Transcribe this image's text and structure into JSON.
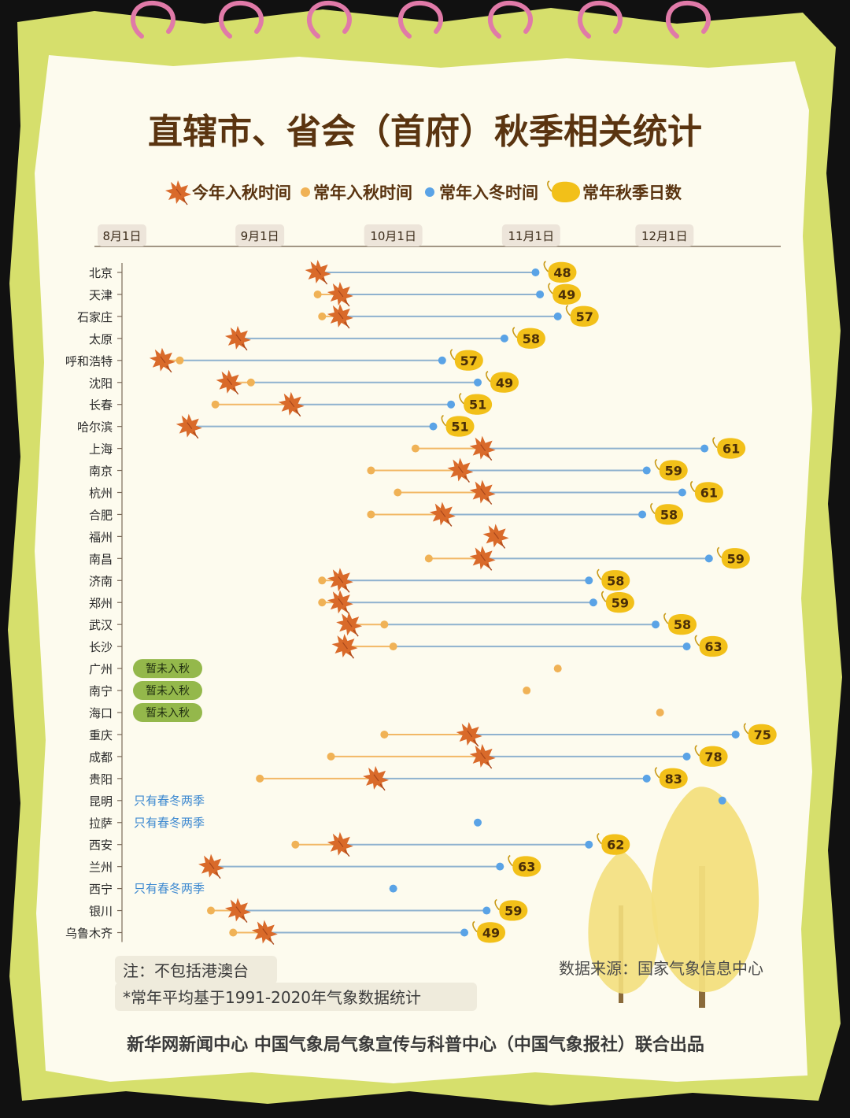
{
  "title": "直辖市、省会（首府）秋季相关统计",
  "legend": {
    "this_year": "今年入秋时间",
    "normal_autumn": "常年入秋时间",
    "normal_winter": "常年入冬时间",
    "autumn_days": "常年秋季日数"
  },
  "badges": {
    "not_yet": "暂未入秋",
    "spring_winter_only": "只有春冬两季"
  },
  "notes": {
    "note1": "注：不包括港澳台",
    "note2": "*常年平均基于1991-2020年气象数据统计",
    "source": "数据来源：国家气象信息中心",
    "credit": "新华网新闻中心 中国气象局气象宣传与科普中心（中国气象报社）联合出品"
  },
  "colors": {
    "accent_brown": "#5a3410",
    "autumn_dot": "#f0b256",
    "winter_dot": "#5aa3e6",
    "badge_fill": "#f2c019",
    "leaf": "#d96a2a",
    "green_badge": "#94b84b",
    "frame": "#d6df6c",
    "paper": "#fdfbee"
  },
  "chart_data": {
    "type": "range-dot",
    "x_axis": {
      "ticks": [
        {
          "label": "8月1日",
          "day": 0
        },
        {
          "label": "9月1日",
          "day": 31
        },
        {
          "label": "10月1日",
          "day": 61
        },
        {
          "label": "11月1日",
          "day": 92
        },
        {
          "label": "12月1日",
          "day": 122
        }
      ]
    },
    "cities": [
      {
        "name": "北京",
        "this_year": 44,
        "normal_autumn": null,
        "normal_winter": 93,
        "days": 48,
        "status": null
      },
      {
        "name": "天津",
        "this_year": 49,
        "normal_autumn": 44,
        "normal_winter": 94,
        "days": 49,
        "status": null
      },
      {
        "name": "石家庄",
        "this_year": 49,
        "normal_autumn": 45,
        "normal_winter": 98,
        "days": 57,
        "status": null
      },
      {
        "name": "太原",
        "this_year": 26,
        "normal_autumn": null,
        "normal_winter": 86,
        "days": 58,
        "status": null
      },
      {
        "name": "呼和浩特",
        "this_year": 9,
        "normal_autumn": 13,
        "normal_winter": 72,
        "days": 57,
        "status": null
      },
      {
        "name": "沈阳",
        "this_year": 24,
        "normal_autumn": 29,
        "normal_winter": 80,
        "days": 49,
        "status": null
      },
      {
        "name": "长春",
        "this_year": 38,
        "normal_autumn": 21,
        "normal_winter": 74,
        "days": 51,
        "status": null
      },
      {
        "name": "哈尔滨",
        "this_year": 15,
        "normal_autumn": null,
        "normal_winter": 70,
        "days": 51,
        "status": null
      },
      {
        "name": "上海",
        "this_year": 81,
        "normal_autumn": 66,
        "normal_winter": 131,
        "days": 61,
        "status": null
      },
      {
        "name": "南京",
        "this_year": 76,
        "normal_autumn": 56,
        "normal_winter": 118,
        "days": 59,
        "status": null
      },
      {
        "name": "杭州",
        "this_year": 81,
        "normal_autumn": 62,
        "normal_winter": 126,
        "days": 61,
        "status": null
      },
      {
        "name": "合肥",
        "this_year": 72,
        "normal_autumn": 56,
        "normal_winter": 117,
        "days": 58,
        "status": null
      },
      {
        "name": "福州",
        "this_year": 84,
        "normal_autumn": null,
        "normal_winter": null,
        "days": null,
        "status": null
      },
      {
        "name": "南昌",
        "this_year": 81,
        "normal_autumn": 69,
        "normal_winter": 132,
        "days": 59,
        "status": null
      },
      {
        "name": "济南",
        "this_year": 49,
        "normal_autumn": 45,
        "normal_winter": 105,
        "days": 58,
        "status": null
      },
      {
        "name": "郑州",
        "this_year": 49,
        "normal_autumn": 45,
        "normal_winter": 106,
        "days": 59,
        "status": null
      },
      {
        "name": "武汉",
        "this_year": 51,
        "normal_autumn": 59,
        "normal_winter": 120,
        "days": 58,
        "status": null
      },
      {
        "name": "长沙",
        "this_year": 50,
        "normal_autumn": 61,
        "normal_winter": 127,
        "days": 63,
        "status": null
      },
      {
        "name": "广州",
        "this_year": null,
        "normal_autumn": 98,
        "normal_winter": null,
        "days": null,
        "status": "not_yet"
      },
      {
        "name": "南宁",
        "this_year": null,
        "normal_autumn": 91,
        "normal_winter": null,
        "days": null,
        "status": "not_yet"
      },
      {
        "name": "海口",
        "this_year": null,
        "normal_autumn": 121,
        "normal_winter": null,
        "days": null,
        "status": "not_yet"
      },
      {
        "name": "重庆",
        "this_year": 78,
        "normal_autumn": 59,
        "normal_winter": 138,
        "days": 75,
        "status": null
      },
      {
        "name": "成都",
        "this_year": 81,
        "normal_autumn": 47,
        "normal_winter": 127,
        "days": 78,
        "status": null
      },
      {
        "name": "贵阳",
        "this_year": 57,
        "normal_autumn": 31,
        "normal_winter": 118,
        "days": 83,
        "status": null
      },
      {
        "name": "昆明",
        "this_year": null,
        "normal_autumn": null,
        "normal_winter": 135,
        "days": null,
        "status": "spring_winter_only"
      },
      {
        "name": "拉萨",
        "this_year": null,
        "normal_autumn": null,
        "normal_winter": 80,
        "days": null,
        "status": "spring_winter_only"
      },
      {
        "name": "西安",
        "this_year": 49,
        "normal_autumn": 39,
        "normal_winter": 105,
        "days": 62,
        "status": null
      },
      {
        "name": "兰州",
        "this_year": 20,
        "normal_autumn": null,
        "normal_winter": 85,
        "days": 63,
        "status": null
      },
      {
        "name": "西宁",
        "this_year": null,
        "normal_autumn": null,
        "normal_winter": 61,
        "days": null,
        "status": "spring_winter_only"
      },
      {
        "name": "银川",
        "this_year": 26,
        "normal_autumn": 20,
        "normal_winter": 82,
        "days": 59,
        "status": null
      },
      {
        "name": "乌鲁木齐",
        "this_year": 32,
        "normal_autumn": 25,
        "normal_winter": 77,
        "days": 49,
        "status": null
      }
    ]
  }
}
